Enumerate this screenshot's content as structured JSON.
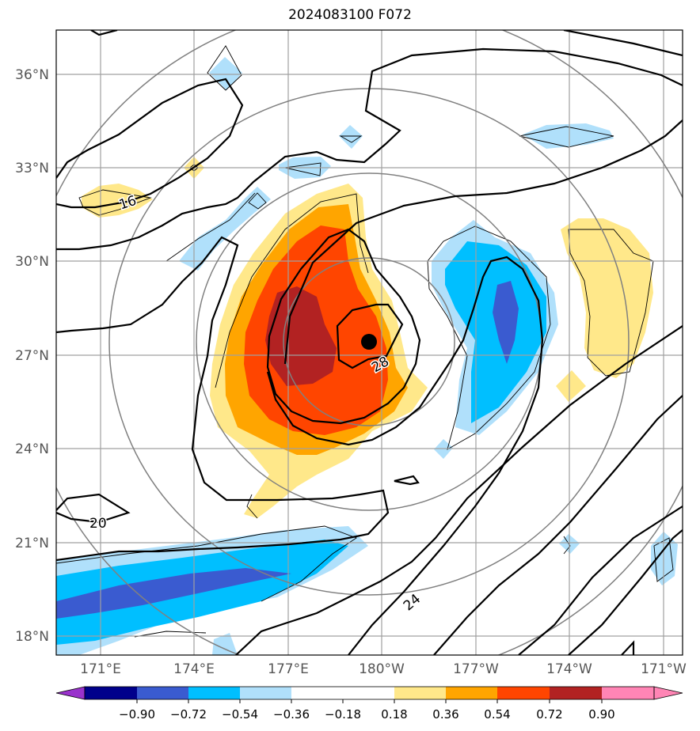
{
  "title": "2024083100 F072",
  "lat_labels": [
    "36°N",
    "33°N",
    "30°N",
    "27°N",
    "24°N",
    "21°N",
    "18°N"
  ],
  "lon_labels": [
    "171°E",
    "174°E",
    "177°E",
    "180°W",
    "177°W",
    "174°W",
    "171°W"
  ],
  "contour_labels": [
    "16",
    "20",
    "24",
    "28"
  ],
  "colorbar": {
    "ticks": [
      "−0.90",
      "−0.72",
      "−0.54",
      "−0.36",
      "−0.18",
      "0.18",
      "0.36",
      "0.54",
      "0.72",
      "0.90"
    ],
    "colors": [
      "#9932cc",
      "#00008b",
      "#3a5bd0",
      "#00bfff",
      "#b0e0fb",
      "#ffffff",
      "#ffe88a",
      "#ffa500",
      "#ff4500",
      "#b22222",
      "#ff85b5"
    ]
  },
  "colors": {
    "light_blue": "#b0e0fb",
    "blue": "#00bfff",
    "mid_blue": "#3a5bd0",
    "yellow": "#ffe88a",
    "orange": "#ffa500",
    "red_orange": "#ff4500",
    "dark_red": "#b22222",
    "grid": "#a0a0a0",
    "range_rings": "#808080"
  },
  "storm_center": {
    "lat": 27.5,
    "lon": 180.0
  }
}
